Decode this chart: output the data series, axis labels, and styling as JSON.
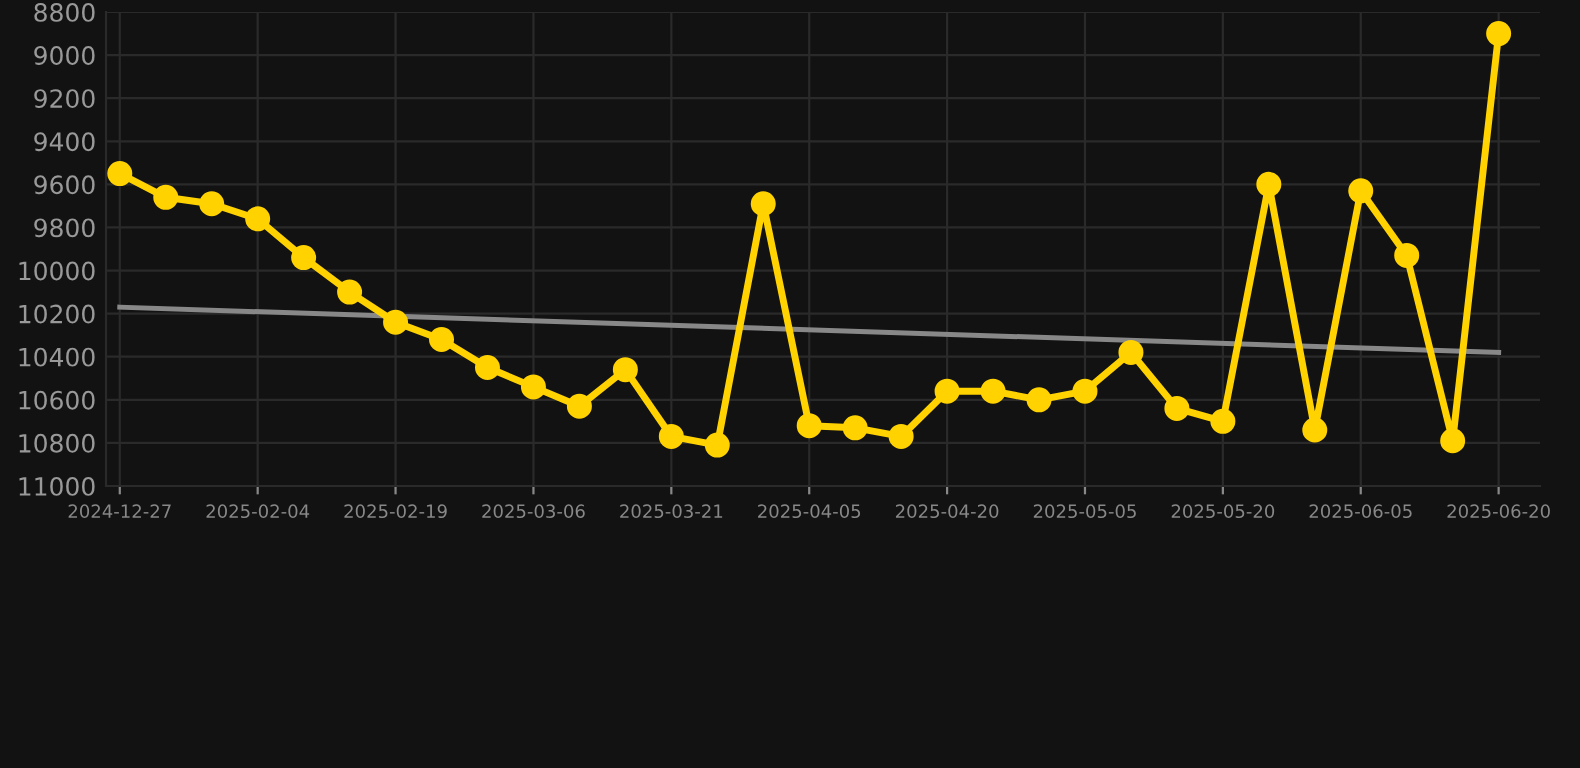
{
  "chart_data": {
    "type": "line",
    "categories": [
      "2024-12-27",
      null,
      null,
      "2025-02-04",
      null,
      null,
      "2025-02-19",
      null,
      null,
      "2025-03-06",
      null,
      null,
      "2025-03-21",
      null,
      null,
      "2025-04-05",
      null,
      null,
      "2025-04-20",
      null,
      null,
      "2025-05-05",
      null,
      null,
      "2025-05-20",
      null,
      null,
      "2025-06-05",
      null,
      null,
      "2025-06-20"
    ],
    "series": [
      {
        "color": "#ffd200",
        "marker": "circle",
        "values": [
          9550,
          9660,
          9690,
          9760,
          9940,
          10100,
          10240,
          10320,
          10450,
          10540,
          10630,
          10460,
          10770,
          10810,
          9690,
          10720,
          10730,
          10770,
          10560,
          10560,
          10600,
          10560,
          10380,
          10640,
          10700,
          9600,
          10740,
          9630,
          9930,
          10790,
          8900
        ]
      },
      {
        "type": "line",
        "color": "#888888",
        "marker": "none",
        "values": [
          10170,
          null,
          null,
          null,
          null,
          null,
          null,
          null,
          null,
          null,
          null,
          null,
          null,
          null,
          null,
          null,
          null,
          null,
          null,
          null,
          null,
          null,
          null,
          null,
          null,
          null,
          null,
          null,
          null,
          null,
          10380
        ]
      }
    ],
    "ylim": [
      11000,
      8800
    ],
    "yticks": [
      8800,
      9000,
      9200,
      9400,
      9600,
      9800,
      10000,
      10200,
      10400,
      10600,
      10800,
      11000
    ],
    "grid": true,
    "line_style": "solid"
  }
}
